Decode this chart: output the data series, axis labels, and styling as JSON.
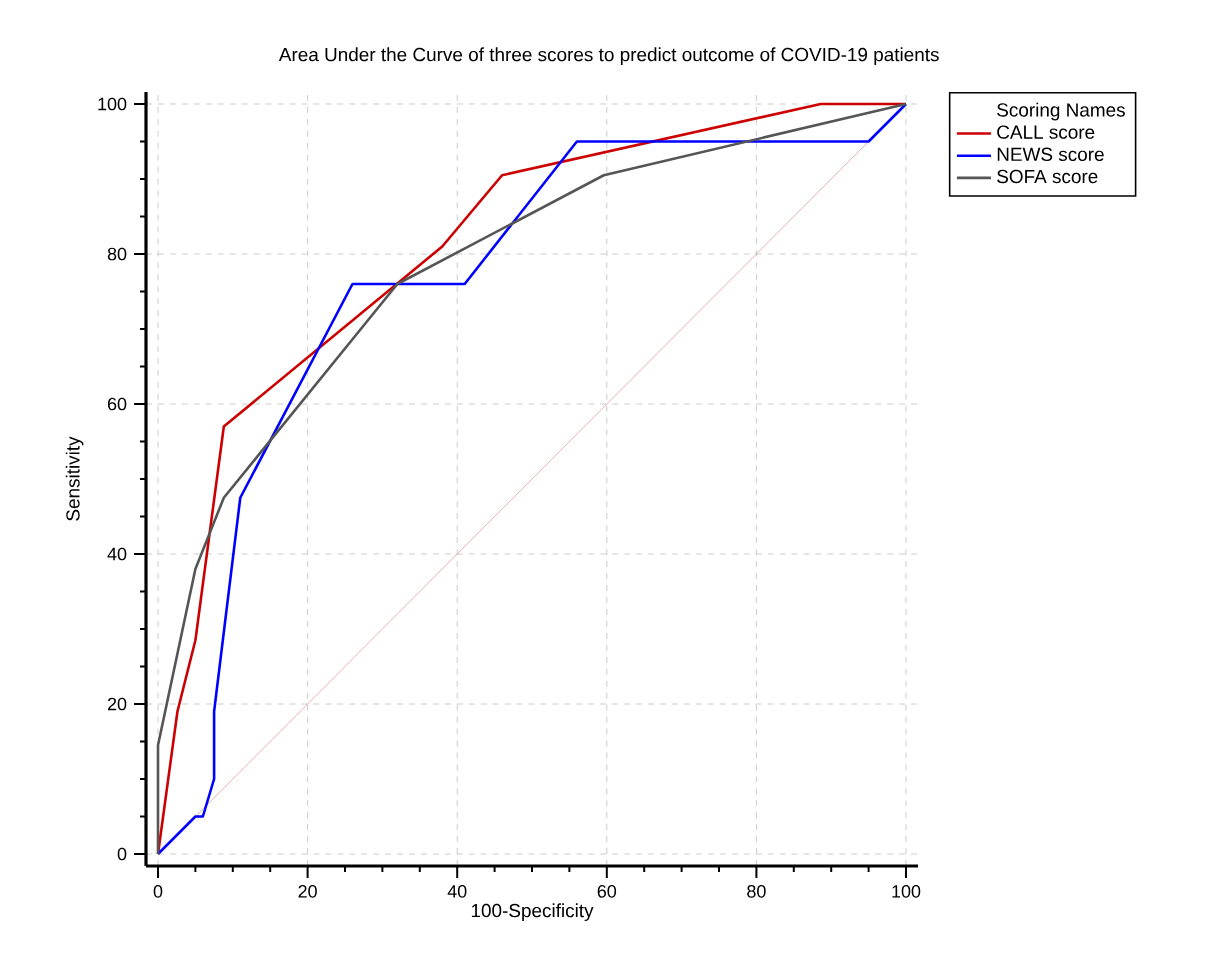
{
  "chart_data": {
    "type": "line",
    "title": "Area Under the Curve of three scores to predict outcome of COVID-19 patients",
    "xlabel": "100-Specificity",
    "ylabel": "Sensitivity",
    "legend_title": "Scoring Names",
    "xlim": [
      0,
      100
    ],
    "ylim": [
      0,
      100
    ],
    "xticks": [
      0,
      20,
      40,
      60,
      80,
      100
    ],
    "yticks": [
      0,
      20,
      40,
      60,
      80,
      100
    ],
    "grid": true,
    "legend": "top right",
    "marker": "none",
    "line_style": "solid",
    "series": [
      {
        "name": "CALL score",
        "color": "#cc0000",
        "x": [
          0,
          2.6,
          5,
          8.8,
          38,
          46,
          88.6,
          100
        ],
        "values": [
          0,
          19,
          28.5,
          57,
          81,
          90.5,
          100,
          100
        ]
      },
      {
        "name": "NEWS score",
        "color": "#0000ff",
        "x": [
          0,
          5,
          6,
          7.5,
          7.5,
          11,
          26,
          41,
          56,
          95,
          100
        ],
        "values": [
          0,
          5,
          5,
          10,
          19,
          47.5,
          76,
          76,
          95,
          95,
          100
        ]
      },
      {
        "name": "SOFA score",
        "color": "#555555",
        "x": [
          0,
          0,
          5,
          8.8,
          32,
          59.6,
          100
        ],
        "values": [
          0,
          14.5,
          38,
          47.5,
          76,
          90.5,
          100
        ]
      },
      {
        "color": "#d9a0a0",
        "x": [
          0,
          100
        ],
        "values": [
          0,
          100
        ]
      }
    ]
  }
}
